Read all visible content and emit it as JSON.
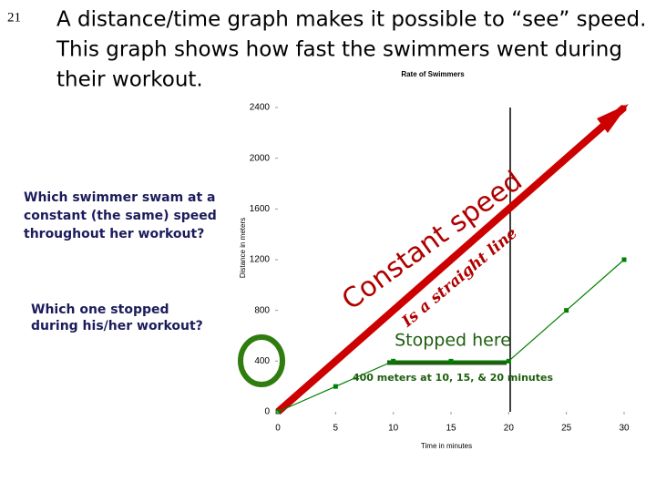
{
  "slide_number": "21",
  "heading": [
    "A distance/time graph makes it possible to “see” speed.",
    "This graph shows how fast the swimmers went during",
    "their workout."
  ],
  "questions": [
    [
      "Which swimmer swam at a",
      "constant (the same) speed",
      "throughout her workout?"
    ],
    [
      "Which one stopped",
      "during his/her workout?"
    ]
  ],
  "chart_data": {
    "type": "line",
    "title": "Rate of Swimmers",
    "x_label": "Time in minutes",
    "y_label": "Distance in meters",
    "x": [
      0,
      5,
      10,
      15,
      20,
      25,
      30
    ],
    "series": [
      {
        "color": "#cc0000",
        "values": [
          0,
          400,
          800,
          1200,
          1600,
          2000,
          2400
        ]
      },
      {
        "color": "#008000",
        "values": [
          0,
          200,
          400,
          400,
          400,
          800,
          1200
        ]
      }
    ],
    "xlim": [
      0,
      30
    ],
    "xticks": [
      0,
      5,
      10,
      15,
      20,
      25,
      30
    ],
    "ylim": [
      0,
      2400
    ],
    "yticks": [
      0,
      400,
      800,
      1200,
      1600,
      2000,
      2400
    ],
    "grid": false,
    "annotations": [
      "Constant speed",
      "Is a straight line",
      "Stopped here",
      "400 meters at 10, 15, & 20 minutes"
    ]
  }
}
